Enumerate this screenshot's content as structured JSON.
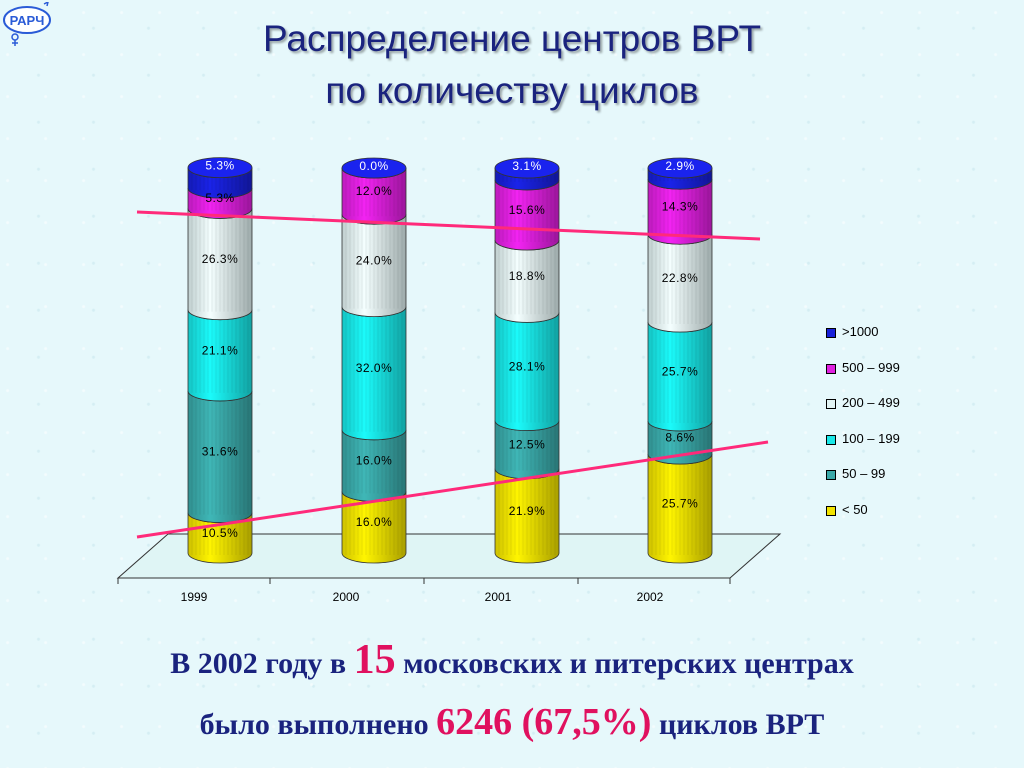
{
  "logo": {
    "text": "РАРЧ"
  },
  "title": {
    "line1": "Распределение центров ВРТ",
    "line2": "по количеству циклов"
  },
  "chart_data": {
    "type": "bar",
    "stacked": true,
    "categories": [
      "1999",
      "2000",
      "2001",
      "2002"
    ],
    "series": [
      {
        "name": "< 50",
        "color": "#f2e300",
        "values": [
          10.5,
          16.0,
          21.9,
          25.7
        ],
        "labels": [
          "10.5%",
          "16.0%",
          "21.9%",
          "25.7%"
        ]
      },
      {
        "name": "50 – 99",
        "color": "#3aa9a9",
        "values": [
          31.6,
          16.0,
          12.5,
          8.6
        ],
        "labels": [
          "31.6%",
          "16.0%",
          "12.5%",
          "8.6%"
        ]
      },
      {
        "name": "100 – 199",
        "color": "#19e8e8",
        "values": [
          21.1,
          32.0,
          28.1,
          25.7
        ],
        "labels": [
          "21.1%",
          "32.0%",
          "28.1%",
          "25.7%"
        ]
      },
      {
        "name": "200 – 499",
        "color": "#e2f4f4",
        "values": [
          26.3,
          24.0,
          18.8,
          22.8
        ],
        "labels": [
          "26.3%",
          "24.0%",
          "18.8%",
          "22.8%"
        ]
      },
      {
        "name": "500 – 999",
        "color": "#e020e0",
        "values": [
          5.3,
          12.0,
          15.6,
          14.3
        ],
        "labels": [
          "5.3%",
          "12.0%",
          "15.6%",
          "14.3%"
        ]
      },
      {
        "name": ">1000",
        "color": "#1820d8",
        "values": [
          5.3,
          0.0,
          3.1,
          2.9
        ],
        "labels": [
          "5.3%",
          "0.0%",
          "3.1%",
          "2.9%"
        ]
      }
    ],
    "ylim": [
      0,
      100
    ],
    "legend_position": "right",
    "legend_order": [
      ">1000",
      "500 – 999",
      "200 – 499",
      "100 – 199",
      "50 – 99",
      "< 50"
    ],
    "trend_line_color": "#ff2a7a"
  },
  "bottom": {
    "line1_a": "В 2002 году в ",
    "line1_num": "15",
    "line1_b": " московских и питерских центрах",
    "line2_a": "было выполнено ",
    "line2_num": "6246 (67,5%)",
    "line2_b": " циклов ВРТ"
  }
}
